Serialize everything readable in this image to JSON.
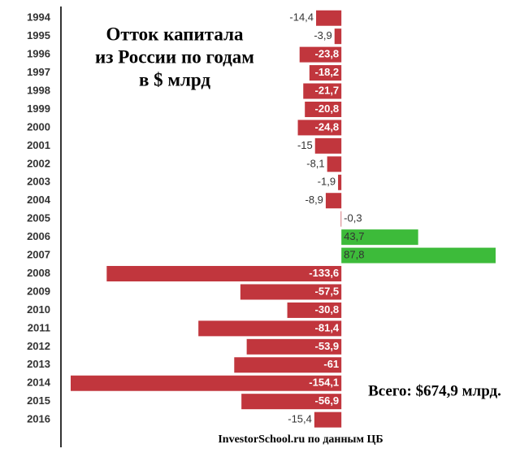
{
  "chart_data": {
    "type": "hbar",
    "title_lines": [
      "Отток капитала",
      "из России по годам",
      "в $ млрд"
    ],
    "annotation": "Всего: $674,9 млрд.",
    "source": "InvestorSchool.ru по данным ЦБ",
    "categories": [
      "1994",
      "1995",
      "1996",
      "1997",
      "1998",
      "1999",
      "2000",
      "2001",
      "2002",
      "2003",
      "2004",
      "2005",
      "2006",
      "2007",
      "2008",
      "2009",
      "2010",
      "2011",
      "2012",
      "2013",
      "2014",
      "2015",
      "2016"
    ],
    "values": [
      -14.4,
      -3.9,
      -23.8,
      -18.2,
      -21.7,
      -20.8,
      -24.8,
      -15,
      -8.1,
      -1.9,
      -8.9,
      -0.3,
      43.7,
      87.8,
      -133.6,
      -57.5,
      -30.8,
      -81.4,
      -53.9,
      -61,
      -154.1,
      -56.9,
      -15.4
    ],
    "value_labels": [
      "-14,4",
      "-3,9",
      "-23,8",
      "-18,2",
      "-21,7",
      "-20,8",
      "-24,8",
      "-15",
      "-8,1",
      "-1,9",
      "-8,9",
      "-0,3",
      "43,7",
      "87,8",
      "-133,6",
      "-57,5",
      "-30,8",
      "-81,4",
      "-53,9",
      "-61",
      "-154,1",
      "-56,9",
      "-15,4"
    ],
    "xlim": [
      -154.1,
      87.8
    ],
    "negative_color": "#c1363d",
    "positive_color": "#3dbb3a"
  }
}
